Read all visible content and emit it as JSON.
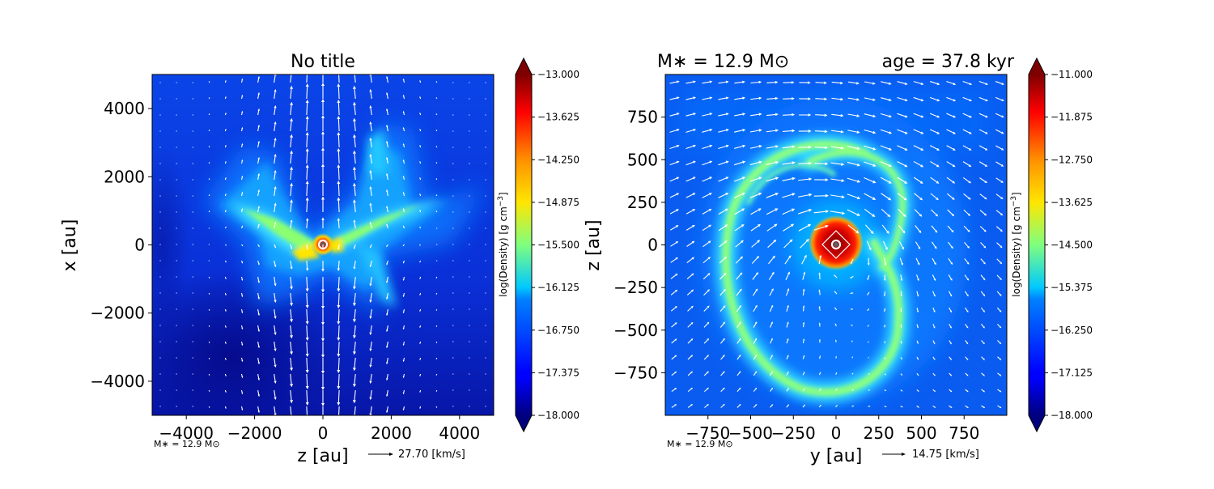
{
  "chart_data": [
    {
      "type": "heatmap",
      "title": "No title",
      "xlabel": "z [au]",
      "ylabel": "x [au]",
      "xlim": [
        -5000,
        5000
      ],
      "ylim": [
        -5000,
        5000
      ],
      "xticks": [
        -4000,
        -2000,
        0,
        2000,
        4000
      ],
      "yticks": [
        -4000,
        -2000,
        0,
        2000,
        4000
      ],
      "xtick_labels": [
        "−4000",
        "−2000",
        "0",
        "2000",
        "4000"
      ],
      "ytick_labels": [
        "−4000",
        "−2000",
        "0",
        "2000",
        "4000"
      ],
      "colorbar": {
        "label": "log(Density) [g cm$^{-3}$]",
        "label_text": "log(Density) [g cm",
        "label_exp": "−3",
        "label_close": "]",
        "range": [
          -18.0,
          -13.0
        ],
        "ticks": [
          -13.0,
          -13.625,
          -14.25,
          -14.875,
          -15.5,
          -16.125,
          -16.75,
          -17.375,
          -18.0
        ],
        "tick_labels": [
          "−13.000",
          "−13.625",
          "−14.250",
          "−14.875",
          "−15.500",
          "−16.125",
          "−16.750",
          "−17.375",
          "−18.000"
        ],
        "colormap": "jet"
      },
      "annotation_mass": "M∗ = 12.9 M⊙",
      "velocity_key": "27.70 [km/s]"
    },
    {
      "type": "heatmap",
      "title_left": "M∗ = 12.9 M⊙",
      "title_right": "age = 37.8 kyr",
      "xlabel": "y [au]",
      "ylabel": "z [au]",
      "xlim": [
        -1000,
        1000
      ],
      "ylim": [
        -1000,
        1000
      ],
      "xticks": [
        -750,
        -500,
        -250,
        0,
        250,
        500,
        750
      ],
      "yticks": [
        -750,
        -500,
        -250,
        0,
        250,
        500,
        750
      ],
      "xtick_labels": [
        "−750",
        "−500",
        "−250",
        "0",
        "250",
        "500",
        "750"
      ],
      "ytick_labels": [
        "−750",
        "−500",
        "−250",
        "0",
        "250",
        "500",
        "750"
      ],
      "colorbar": {
        "label": "log(Density) [g cm$^{-3}$]",
        "label_text": "log(Density) [g cm",
        "label_exp": "−3",
        "label_close": "]",
        "range": [
          -18.0,
          -11.0
        ],
        "ticks": [
          -11.0,
          -11.875,
          -12.75,
          -13.625,
          -14.5,
          -15.375,
          -16.25,
          -17.125,
          -18.0
        ],
        "tick_labels": [
          "−11.000",
          "−11.875",
          "−12.750",
          "−13.625",
          "−14.500",
          "−15.375",
          "−16.250",
          "−17.125",
          "−18.000"
        ],
        "colormap": "jet"
      },
      "annotation_mass": "M∗ = 12.9 M⊙",
      "velocity_key": "14.75 [km/s]"
    }
  ]
}
